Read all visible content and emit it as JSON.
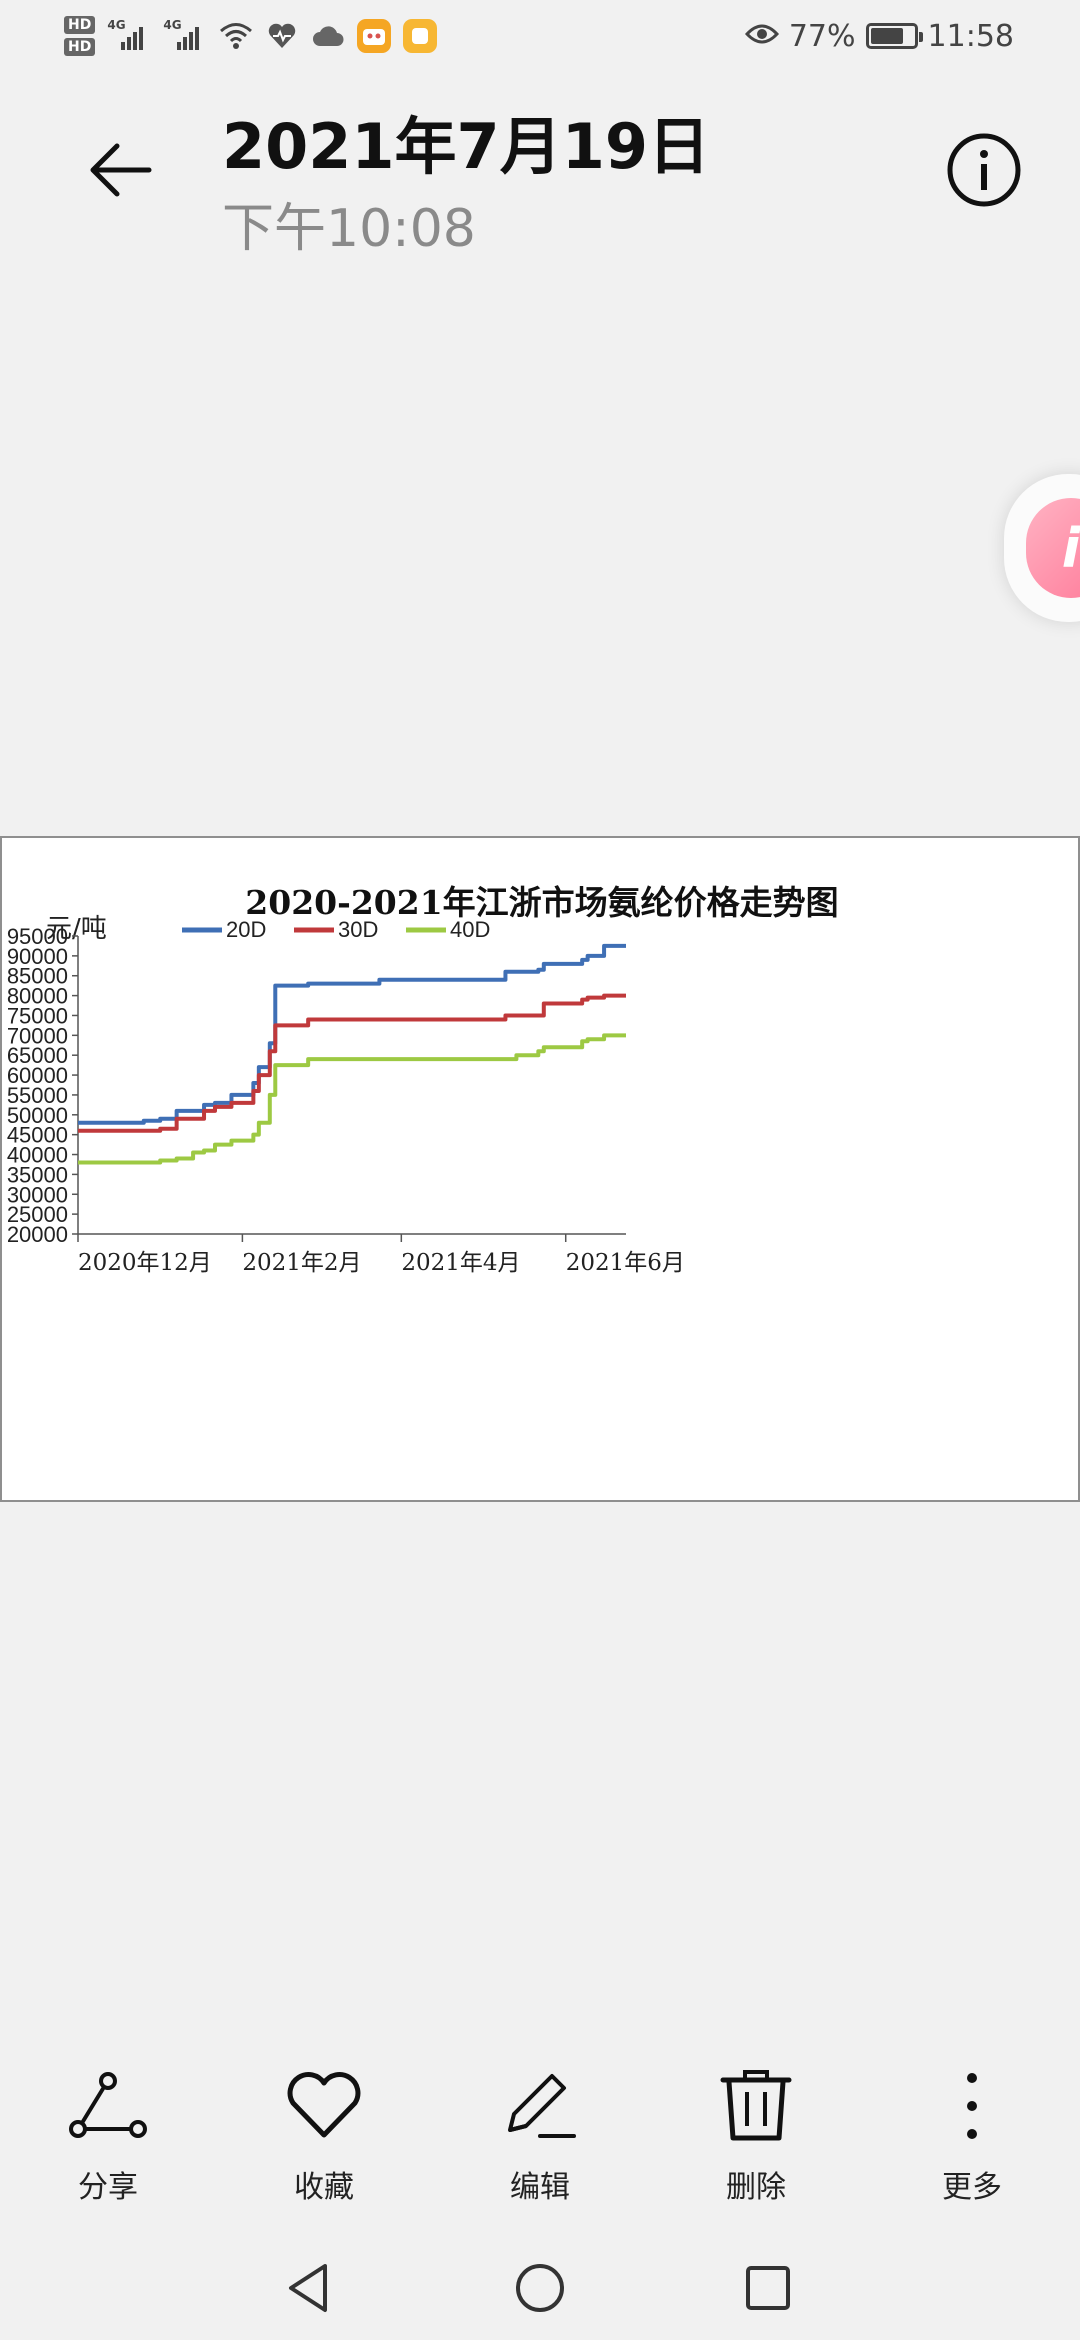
{
  "status_bar": {
    "hd1": "HD",
    "hd2": "HD",
    "sim1": "4G",
    "sim2": "4G",
    "battery_percent": "77%",
    "battery_level": 0.77,
    "time": "11:58"
  },
  "header": {
    "date": "2021年7月19日",
    "time": "下午10:08"
  },
  "image": {
    "chart_data": {
      "type": "line",
      "title": "2020-2021年江浙市场氨纶价格走势图",
      "ylabel": "元/吨",
      "xlabel": "",
      "ylim": [
        20000,
        95000
      ],
      "y_ticks": [
        20000,
        25000,
        30000,
        35000,
        40000,
        45000,
        50000,
        55000,
        60000,
        65000,
        70000,
        75000,
        80000,
        85000,
        90000,
        95000
      ],
      "x_tick_labels": [
        "2020年12月",
        "2021年2月",
        "2021年4月",
        "2021年6月"
      ],
      "legend_position": "top",
      "series": [
        {
          "name": "20D",
          "color": "#3f6fb5",
          "x": [
            0,
            8,
            12,
            15,
            18,
            23,
            25,
            28,
            30,
            32,
            33,
            35,
            36,
            42,
            55,
            72,
            78,
            84,
            85,
            90,
            92,
            93,
            96,
            100
          ],
          "values": [
            48000,
            48000,
            48500,
            49000,
            51000,
            52500,
            53000,
            55000,
            55000,
            58000,
            62000,
            68000,
            82500,
            83000,
            84000,
            84000,
            86000,
            86500,
            88000,
            88000,
            89000,
            90000,
            92500,
            92500
          ]
        },
        {
          "name": "30D",
          "color": "#c0393b",
          "x": [
            0,
            12,
            15,
            18,
            23,
            25,
            28,
            30,
            32,
            33,
            35,
            36,
            42,
            55,
            72,
            78,
            84,
            85,
            90,
            92,
            93,
            96,
            100
          ],
          "values": [
            46000,
            46000,
            46500,
            49000,
            51000,
            52000,
            53000,
            53000,
            56000,
            60000,
            66000,
            72500,
            74000,
            74000,
            74000,
            75000,
            75000,
            78000,
            78000,
            79000,
            79500,
            80000,
            80000
          ]
        },
        {
          "name": "40D",
          "color": "#9dc943",
          "x": [
            0,
            12,
            15,
            18,
            21,
            23,
            25,
            28,
            30,
            32,
            33,
            35,
            36,
            42,
            55,
            70,
            78,
            80,
            84,
            85,
            90,
            92,
            93,
            96,
            100
          ],
          "values": [
            38000,
            38000,
            38500,
            39000,
            40500,
            41000,
            42500,
            43500,
            43500,
            45000,
            48000,
            55000,
            62500,
            64000,
            64000,
            64000,
            64000,
            65000,
            66000,
            67000,
            67000,
            68500,
            69000,
            70000,
            70000
          ]
        }
      ]
    }
  },
  "toolbar": {
    "share": "分享",
    "favorite": "收藏",
    "edit": "编辑",
    "delete": "删除",
    "more": "更多"
  }
}
